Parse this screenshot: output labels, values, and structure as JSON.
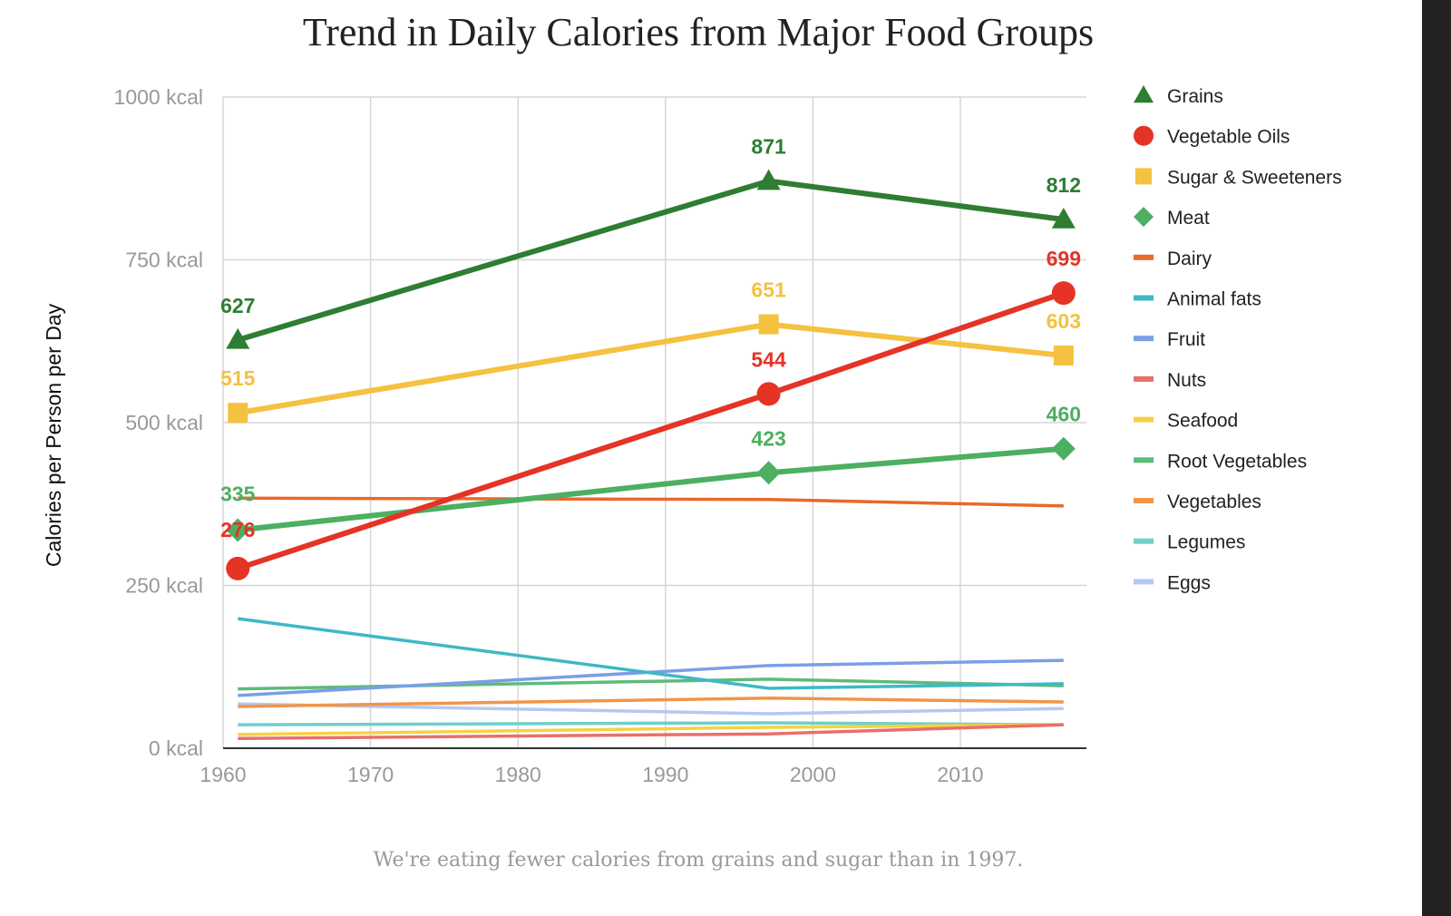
{
  "chart_data": {
    "type": "line",
    "title": "Trend in Daily Calories from Major Food Groups",
    "caption": "We're eating fewer calories from grains and sugar than in 1997.",
    "ylabel": "Calories per Person per Day",
    "xlabel": "",
    "xlim": [
      1960,
      2018
    ],
    "ylim": [
      0,
      1000
    ],
    "x_ticks": [
      "1960",
      "1970",
      "1980",
      "1990",
      "2000",
      "2010"
    ],
    "y_ticks": [
      "0 kcal",
      "250 kcal",
      "500 kcal",
      "750 kcal",
      "1000 kcal"
    ],
    "grid": true,
    "legend": "right",
    "x": [
      1961,
      1997,
      2017
    ],
    "series": [
      {
        "name": "Grains",
        "values": [
          627,
          871,
          812
        ],
        "color": "#2e7d32",
        "marker": "triangle",
        "labels": true
      },
      {
        "name": "Vegetable Oils",
        "values": [
          276,
          544,
          699
        ],
        "color": "#e53326",
        "marker": "circle",
        "labels": true
      },
      {
        "name": "Sugar & Sweeteners",
        "values": [
          515,
          651,
          603
        ],
        "color": "#f4c141",
        "marker": "square",
        "labels": true
      },
      {
        "name": "Meat",
        "values": [
          335,
          423,
          460
        ],
        "color": "#4caf62",
        "marker": "diamond",
        "labels": true
      },
      {
        "name": "Dairy",
        "values": [
          384,
          382,
          372
        ],
        "color": "#e8692a",
        "marker": "line"
      },
      {
        "name": "Animal fats",
        "values": [
          199,
          92,
          99
        ],
        "color": "#3fb8c4",
        "marker": "line"
      },
      {
        "name": "Fruit",
        "values": [
          81,
          127,
          135
        ],
        "color": "#7a9ee8",
        "marker": "line"
      },
      {
        "name": "Nuts",
        "values": [
          15,
          22,
          36
        ],
        "color": "#e8706a",
        "marker": "line"
      },
      {
        "name": "Seafood",
        "values": [
          21,
          32,
          36
        ],
        "color": "#f6d145",
        "marker": "line"
      },
      {
        "name": "Root Vegetables",
        "values": [
          91,
          106,
          96
        ],
        "color": "#5dbb7a",
        "marker": "line"
      },
      {
        "name": "Vegetables",
        "values": [
          64,
          77,
          71
        ],
        "color": "#f0954a",
        "marker": "line"
      },
      {
        "name": "Legumes",
        "values": [
          36,
          39,
          36
        ],
        "color": "#6fcfc9",
        "marker": "line"
      },
      {
        "name": "Eggs",
        "values": [
          68,
          53,
          61
        ],
        "color": "#b4c8f2",
        "marker": "line"
      }
    ]
  }
}
